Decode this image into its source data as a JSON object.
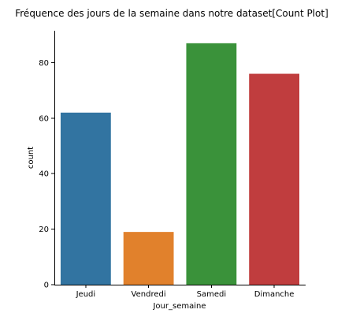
{
  "chart_data": {
    "type": "bar",
    "title": "Fréquence des jours de la semaine dans notre dataset[Count Plot]",
    "xlabel": "Jour_semaine",
    "ylabel": "count",
    "categories": [
      "Jeudi",
      "Vendredi",
      "Samedi",
      "Dimanche"
    ],
    "values": [
      62,
      19,
      87,
      76
    ],
    "colors": [
      "#3274a1",
      "#e1812c",
      "#3a923a",
      "#c03d3e"
    ],
    "ylim": [
      0,
      91.5
    ],
    "yticks": [
      0,
      20,
      40,
      60,
      80
    ],
    "grid": false,
    "legend": "none"
  }
}
